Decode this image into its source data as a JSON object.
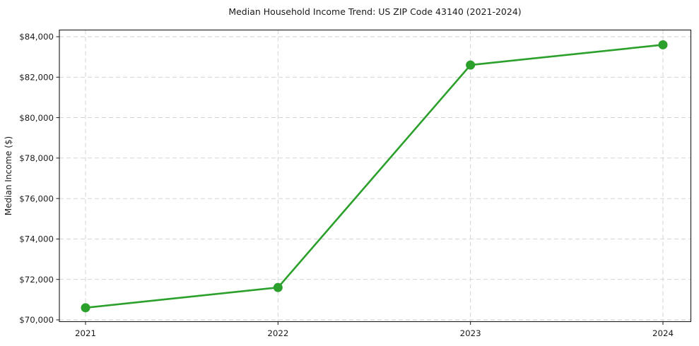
{
  "chart_data": {
    "type": "line",
    "title": "Median Household Income Trend: US ZIP Code 43140 (2021-2024)",
    "xlabel": "",
    "ylabel": "Median Income ($)",
    "categories": [
      "2021",
      "2022",
      "2023",
      "2024"
    ],
    "values": [
      70600,
      71600,
      82600,
      83600
    ],
    "ylim": [
      70000,
      84000
    ],
    "ytick_step": 2000,
    "ytick_labels": [
      "$70,000",
      "$72,000",
      "$74,000",
      "$76,000",
      "$78,000",
      "$80,000",
      "$82,000",
      "$84,000"
    ],
    "grid": "dashed-both-axes",
    "legend": "none",
    "marker": "circle",
    "line_color": "#2ca02c",
    "grid_color": "#cfcfcf",
    "spine_color": "#1a1a1a",
    "text_color": "#1a1a1a",
    "background_color": "#ffffff"
  }
}
